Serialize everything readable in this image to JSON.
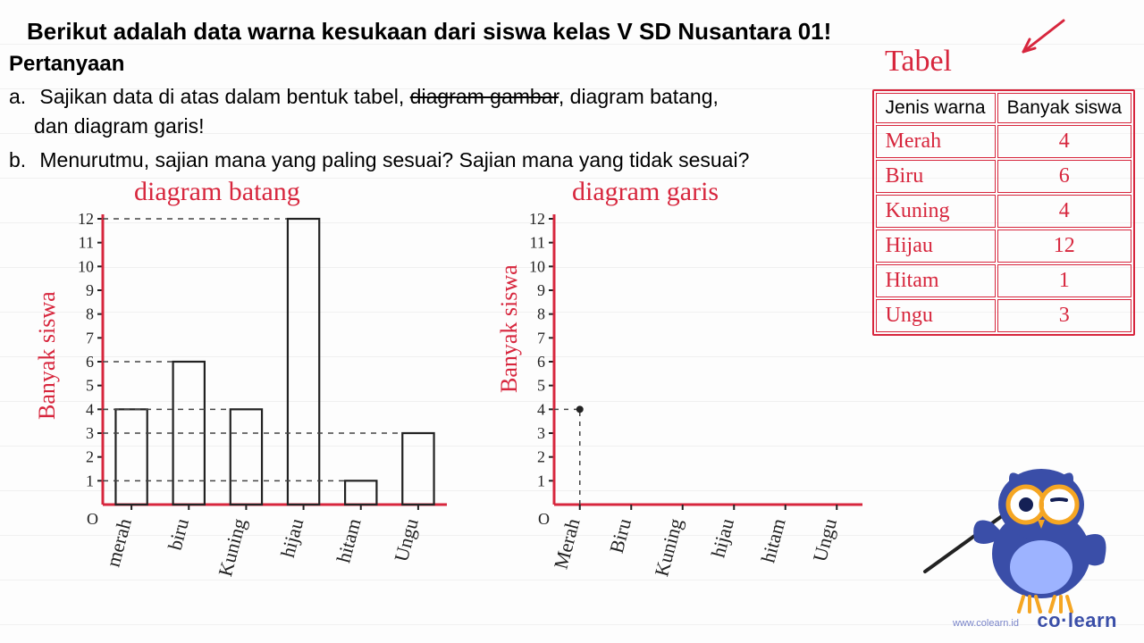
{
  "title": "Berikut adalah data warna kesukaan dari siswa kelas V SD Nusantara 01!",
  "subtitle": "Pertanyaan",
  "qA_label": "a.",
  "qA_line1_pre": "Sajikan data di atas dalam bentuk tabel, ",
  "qA_strike": "diagram gambar",
  "qA_line1_post": ", diagram batang,",
  "qA_line2": "dan diagram garis!",
  "qB_label": "b.",
  "qB_text": "Menurutmu, sajian mana yang paling sesuai? Sajian mana yang tidak sesuai?",
  "tabel_label": "Tabel",
  "table": {
    "col1": "Jenis warna",
    "col2": "Banyak siswa",
    "rows": [
      {
        "name": "Merah",
        "val": "4"
      },
      {
        "name": "Biru",
        "val": "6"
      },
      {
        "name": "Kuning",
        "val": "4"
      },
      {
        "name": "Hijau",
        "val": "12"
      },
      {
        "name": "Hitam",
        "val": "1"
      },
      {
        "name": "Ungu",
        "val": "3"
      }
    ]
  },
  "chart1": {
    "title": "diagram batang",
    "ylabel": "Banyak siswa",
    "categories": [
      "merah",
      "biru",
      "Kuning",
      "hijau",
      "hitam",
      "Ungu"
    ],
    "values": [
      4,
      6,
      4,
      12,
      1,
      3
    ],
    "ymax": 12,
    "yticks": [
      1,
      2,
      3,
      4,
      5,
      6,
      7,
      8,
      9,
      10,
      11,
      12
    ],
    "axis_color": "#d7263d",
    "bar_stroke": "#222",
    "dashed_color": "#444"
  },
  "chart2": {
    "title": "diagram garis",
    "ylabel": "Banyak siswa",
    "categories": [
      "Merah",
      "Biru",
      "Kuning",
      "hijau",
      "hitam",
      "Ungu"
    ],
    "values": [
      4,
      null,
      null,
      null,
      null,
      null
    ],
    "ymax": 12,
    "yticks": [
      1,
      2,
      3,
      4,
      5,
      6,
      7,
      8,
      9,
      10,
      11,
      12
    ],
    "axis_color": "#d7263d",
    "point_color": "#222",
    "dashed_color": "#444"
  },
  "origin_label": "O",
  "brand": "co·learn",
  "brand_url": "www.colearn.id",
  "colors": {
    "red": "#d7263d",
    "black": "#222",
    "blue": "#3a4ea8",
    "orange": "#f5a623"
  }
}
